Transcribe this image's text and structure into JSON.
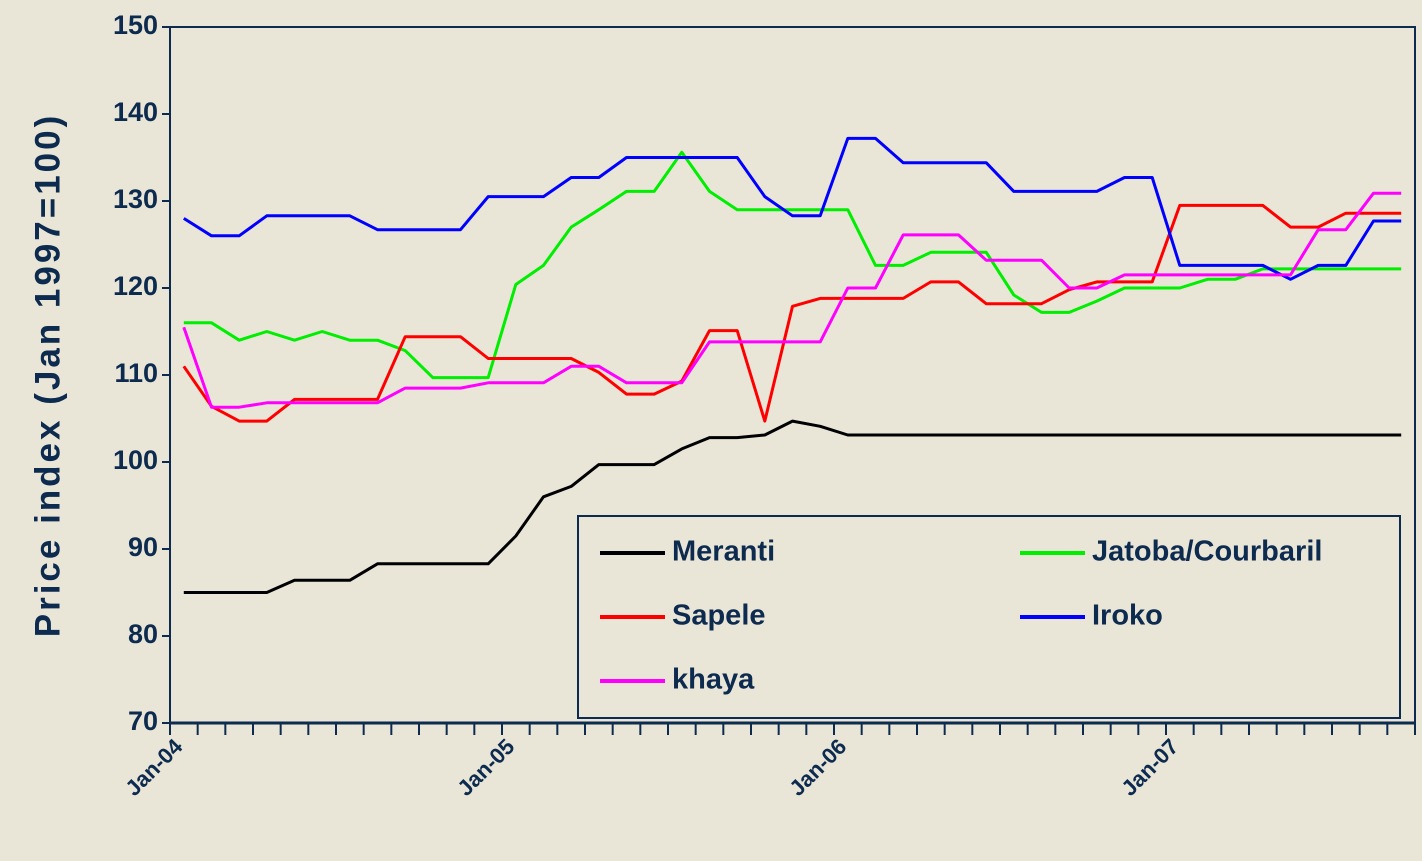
{
  "chart_data": {
    "type": "line",
    "y_label": "Price index (Jan 1997=100)",
    "categories": [
      "Jan-04",
      null,
      null,
      null,
      null,
      null,
      null,
      null,
      null,
      null,
      null,
      null,
      "Jan-05",
      null,
      null,
      null,
      null,
      null,
      null,
      null,
      null,
      null,
      null,
      null,
      "Jan-06",
      null,
      null,
      null,
      null,
      null,
      null,
      null,
      null,
      null,
      null,
      null,
      "Jan-07",
      null,
      null,
      null,
      null,
      null,
      null,
      null,
      null
    ],
    "ylim": [
      70,
      150
    ],
    "yticks": [
      70,
      80,
      90,
      100,
      110,
      120,
      130,
      140,
      150
    ],
    "legend": "lower right",
    "series": [
      {
        "name": "Meranti",
        "color": "#000000",
        "values": [
          85,
          85,
          85,
          85,
          86.4,
          86.4,
          86.4,
          88.3,
          88.3,
          88.3,
          88.3,
          88.3,
          91.5,
          96,
          97.2,
          99.7,
          99.7,
          99.7,
          101.5,
          102.8,
          102.8,
          103.1,
          104.7,
          104.1,
          103.1,
          103.1,
          103.1,
          103.1,
          103.1,
          103.1,
          103.1,
          103.1,
          103.1,
          103.1,
          103.1,
          103.1,
          103.1,
          103.1,
          103.1,
          103.1,
          103.1,
          103.1,
          103.1,
          103.1,
          103.1
        ]
      },
      {
        "name": "Jatoba/Courbaril",
        "color": "#00ee00",
        "values": [
          116,
          116,
          114,
          115,
          114,
          115,
          114,
          114,
          112.8,
          109.7,
          109.7,
          109.7,
          120.4,
          122.6,
          127,
          129,
          131.1,
          131.1,
          135.6,
          131.1,
          129,
          129,
          129,
          129,
          129,
          122.6,
          122.6,
          124.1,
          124.1,
          124.1,
          119.2,
          117.2,
          117.2,
          118.5,
          120,
          120,
          120,
          121,
          121,
          122.2,
          122.2,
          122.2,
          122.2,
          122.2,
          122.2
        ]
      },
      {
        "name": "Sapele",
        "color": "#ff0000",
        "values": [
          111,
          106.4,
          104.7,
          104.7,
          107.2,
          107.2,
          107.2,
          107.2,
          114.4,
          114.4,
          114.4,
          111.9,
          111.9,
          111.9,
          111.9,
          110.3,
          107.8,
          107.8,
          109.3,
          115.1,
          115.1,
          104.7,
          117.9,
          118.8,
          118.8,
          118.8,
          118.8,
          120.7,
          120.7,
          118.2,
          118.2,
          118.2,
          119.8,
          120.7,
          120.7,
          120.7,
          129.5,
          129.5,
          129.5,
          129.5,
          127,
          127,
          128.6,
          128.6,
          128.6
        ]
      },
      {
        "name": "Iroko",
        "color": "#0000ff",
        "values": [
          128,
          126,
          126,
          128.3,
          128.3,
          128.3,
          128.3,
          126.7,
          126.7,
          126.7,
          126.7,
          130.5,
          130.5,
          130.5,
          132.7,
          132.7,
          135,
          135,
          135,
          135,
          135,
          130.5,
          128.3,
          128.3,
          137.2,
          137.2,
          134.4,
          134.4,
          134.4,
          134.4,
          131.1,
          131.1,
          131.1,
          131.1,
          132.7,
          132.7,
          122.6,
          122.6,
          122.6,
          122.6,
          121,
          122.6,
          122.6,
          127.7,
          127.7
        ]
      },
      {
        "name": "khaya",
        "color": "#ff00ff",
        "values": [
          115.5,
          106.3,
          106.3,
          106.8,
          106.8,
          106.8,
          106.8,
          106.8,
          108.5,
          108.5,
          108.5,
          109.1,
          109.1,
          109.1,
          111,
          111,
          109.1,
          109.1,
          109.1,
          113.8,
          113.8,
          113.8,
          113.8,
          113.8,
          120,
          120,
          126.1,
          126.1,
          126.1,
          123.2,
          123.2,
          123.2,
          120,
          120,
          121.5,
          121.5,
          121.5,
          121.5,
          121.5,
          121.5,
          121.5,
          126.7,
          126.7,
          130.9,
          130.9
        ]
      }
    ]
  }
}
